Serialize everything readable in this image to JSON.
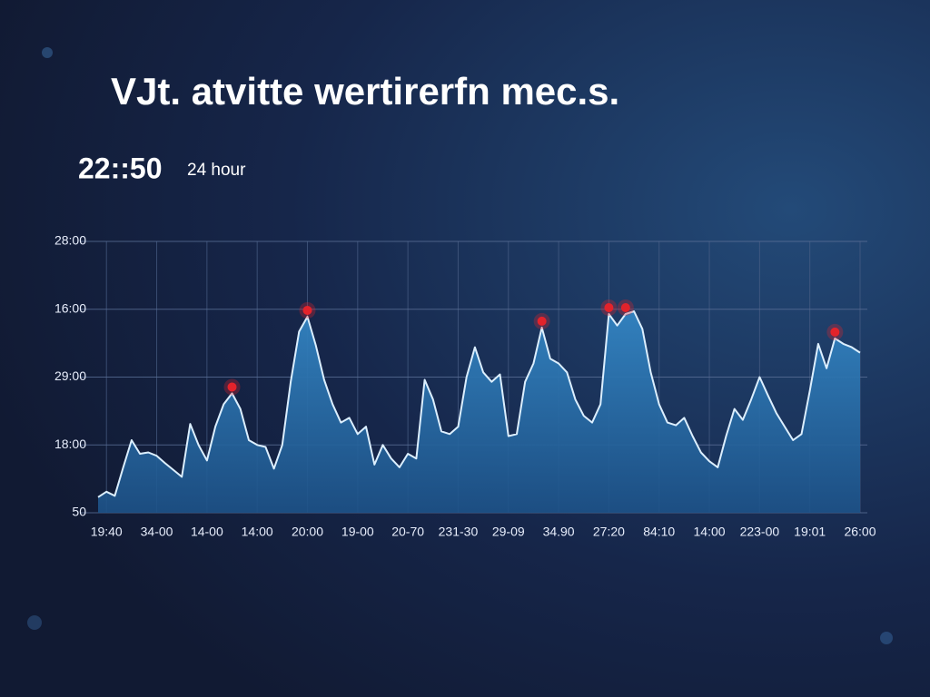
{
  "chart_data": {
    "type": "area",
    "title": "VJt. atvitte wertirerfn  mec.s.",
    "clock_label": "22::50",
    "subtitle": "24 hour",
    "categories": [
      null,
      "19:40",
      null,
      null,
      null,
      null,
      null,
      "34-00",
      null,
      null,
      null,
      null,
      null,
      "14-00",
      null,
      null,
      null,
      null,
      null,
      "14:00",
      null,
      null,
      null,
      null,
      null,
      "20:00",
      null,
      null,
      null,
      null,
      null,
      "19-00",
      null,
      null,
      null,
      null,
      null,
      "20-70",
      null,
      null,
      null,
      null,
      null,
      "231-30",
      null,
      null,
      null,
      null,
      null,
      "29-09",
      null,
      null,
      null,
      null,
      null,
      "34.90",
      null,
      null,
      null,
      null,
      null,
      "27:20",
      null,
      null,
      null,
      null,
      null,
      "84:10",
      null,
      null,
      null,
      null,
      null,
      "14:00",
      null,
      null,
      null,
      null,
      null,
      "223-00",
      null,
      null,
      null,
      null,
      null,
      "19:01",
      null,
      null,
      null,
      null,
      null,
      "26:00"
    ],
    "values": [
      0.23,
      0.31,
      0.25,
      0.67,
      1.07,
      0.87,
      0.89,
      0.84,
      0.73,
      0.63,
      0.53,
      1.31,
      1.0,
      0.77,
      1.27,
      1.6,
      1.76,
      1.53,
      1.07,
      1.0,
      0.97,
      0.65,
      1.0,
      1.93,
      2.67,
      2.89,
      2.47,
      1.96,
      1.6,
      1.33,
      1.4,
      1.16,
      1.27,
      0.71,
      1.0,
      0.8,
      0.67,
      0.87,
      0.8,
      1.96,
      1.67,
      1.2,
      1.16,
      1.27,
      2.0,
      2.44,
      2.07,
      1.93,
      2.04,
      1.13,
      1.16,
      1.93,
      2.2,
      2.73,
      2.27,
      2.2,
      2.07,
      1.67,
      1.43,
      1.33,
      1.6,
      2.93,
      2.76,
      2.93,
      2.97,
      2.71,
      2.07,
      1.6,
      1.33,
      1.29,
      1.4,
      1.13,
      0.89,
      0.76,
      0.67,
      1.13,
      1.53,
      1.37,
      1.67,
      2.0,
      1.73,
      1.47,
      1.27,
      1.07,
      1.16,
      1.8,
      2.49,
      2.13,
      2.57,
      2.49,
      2.44,
      2.36
    ],
    "color": "#2c73ad",
    "line_color": "#dcefff",
    "highlights": [
      16,
      25,
      53,
      61,
      63,
      88
    ],
    "highlight_color": "#e3232b",
    "ylim": [
      0,
      4
    ],
    "yticks": [
      {
        "value": 0,
        "label": "50"
      },
      {
        "value": 1,
        "label": "18:00"
      },
      {
        "value": 2,
        "label": "29:00"
      },
      {
        "value": 3,
        "label": "16:00"
      },
      {
        "value": 4,
        "label": "28:00"
      }
    ],
    "grid": true
  }
}
